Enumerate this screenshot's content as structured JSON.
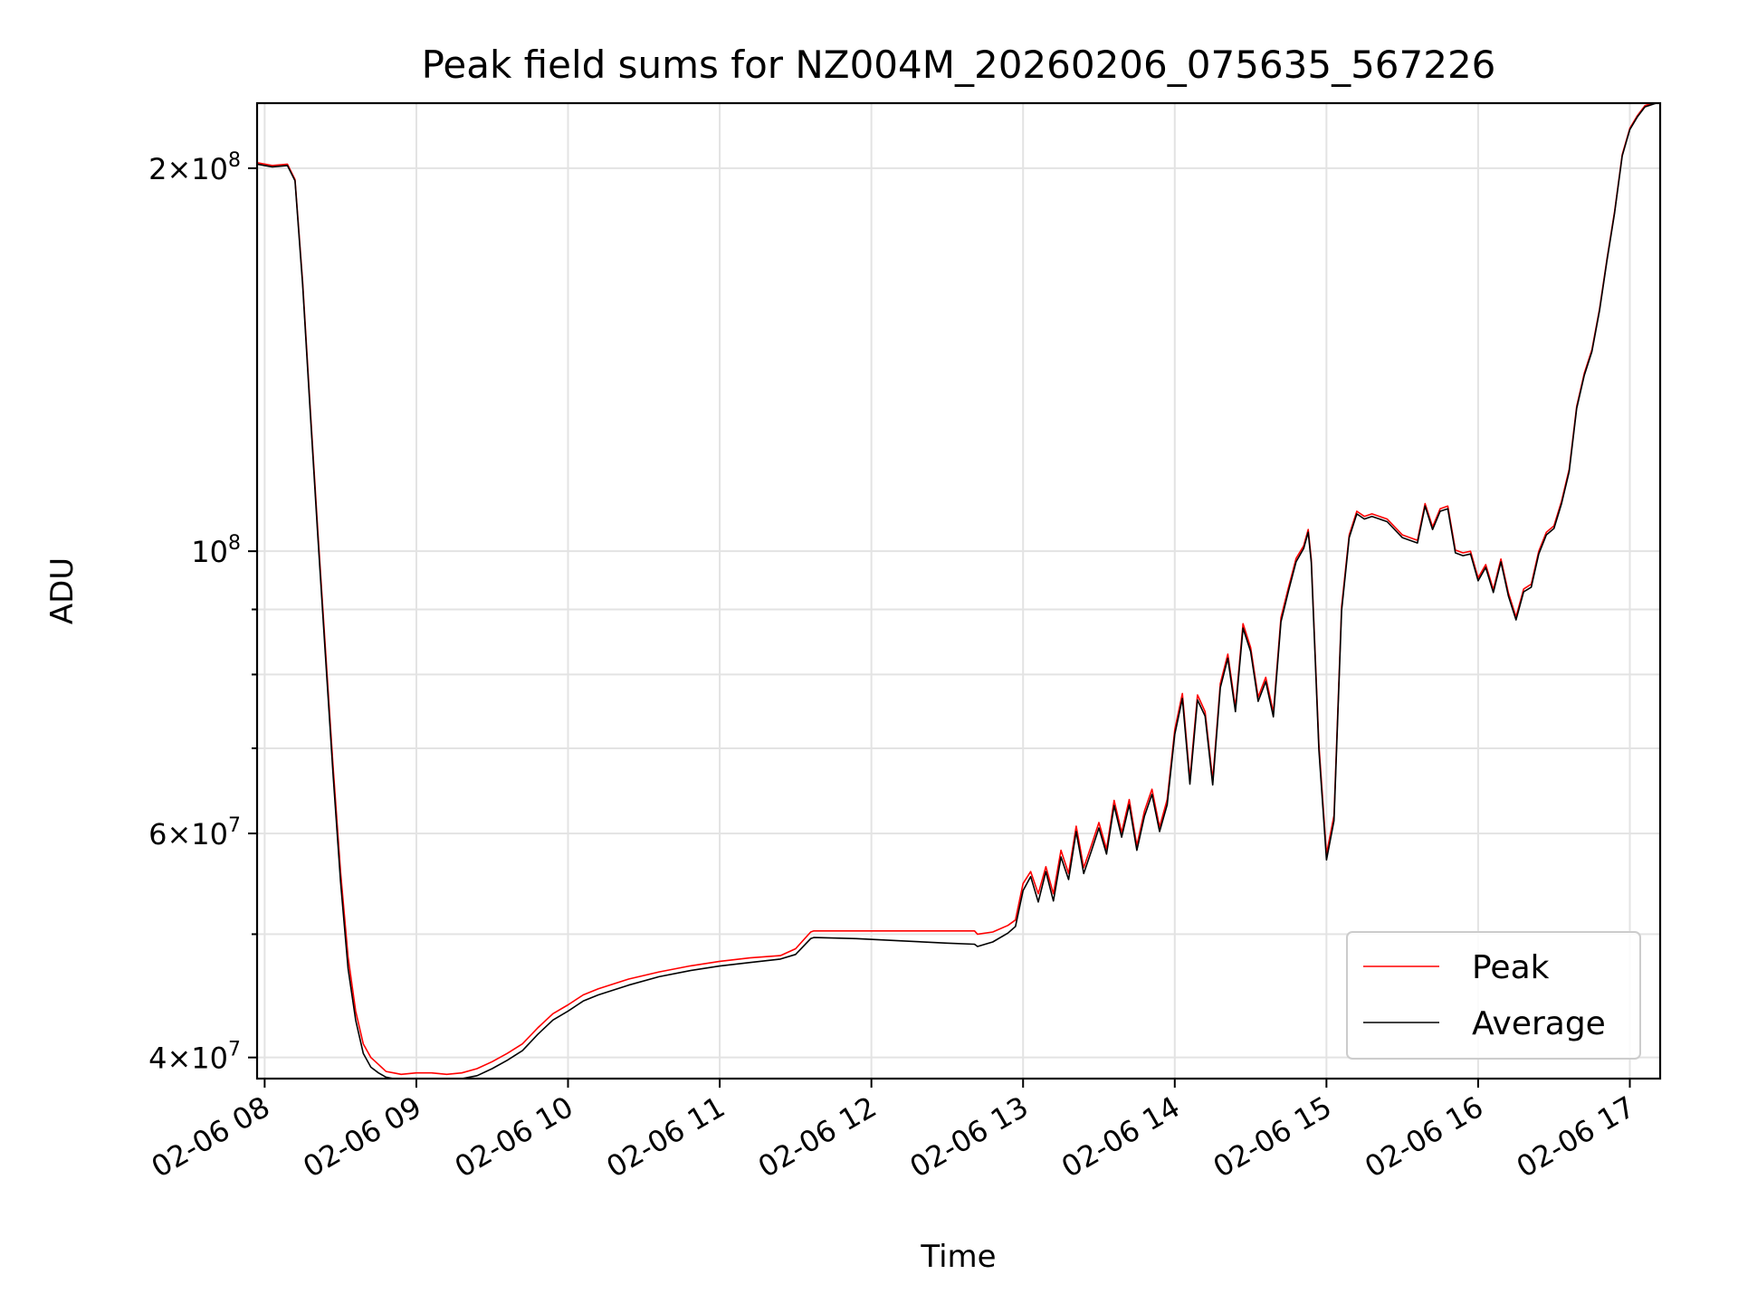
{
  "chart_data": {
    "type": "line",
    "title": "Peak field sums for NZ004M_20260206_075635_567226",
    "xlabel": "Time",
    "ylabel": "ADU",
    "yscale": "log",
    "grid": true,
    "legend_position": "lower-right",
    "x_unit": "hour of day (2026-02-06)",
    "xlim": [
      7.95,
      17.2
    ],
    "ylim": [
      38500000,
      225000000
    ],
    "x_ticks": [
      {
        "value": 8,
        "label": "02-06 08"
      },
      {
        "value": 9,
        "label": "02-06 09"
      },
      {
        "value": 10,
        "label": "02-06 10"
      },
      {
        "value": 11,
        "label": "02-06 11"
      },
      {
        "value": 12,
        "label": "02-06 12"
      },
      {
        "value": 13,
        "label": "02-06 13"
      },
      {
        "value": 14,
        "label": "02-06 14"
      },
      {
        "value": 15,
        "label": "02-06 15"
      },
      {
        "value": 16,
        "label": "02-06 16"
      },
      {
        "value": 17,
        "label": "02-06 17"
      }
    ],
    "y_ticks": [
      {
        "value": 200000000,
        "mantissa": "2",
        "exponent": "8"
      },
      {
        "value": 100000000,
        "mantissa": "",
        "exponent": "8"
      },
      {
        "value": 60000000,
        "mantissa": "6",
        "exponent": "7"
      },
      {
        "value": 40000000,
        "mantissa": "4",
        "exponent": "7"
      }
    ],
    "y_minor_ticks": [
      50000000,
      70000000,
      80000000,
      90000000
    ],
    "series": [
      {
        "name": "Peak",
        "color": "#ff0000",
        "x": [
          7.95,
          8.05,
          8.15,
          8.2,
          8.25,
          8.3,
          8.35,
          8.4,
          8.45,
          8.5,
          8.55,
          8.6,
          8.65,
          8.7,
          8.75,
          8.8,
          8.85,
          8.9,
          9.0,
          9.1,
          9.2,
          9.3,
          9.4,
          9.5,
          9.6,
          9.7,
          9.8,
          9.9,
          10.0,
          10.1,
          10.2,
          10.4,
          10.6,
          10.8,
          11.0,
          11.2,
          11.4,
          11.5,
          11.6,
          11.62,
          11.9,
          12.2,
          12.5,
          12.68,
          12.7,
          12.8,
          12.9,
          12.95,
          13.0,
          13.05,
          13.1,
          13.15,
          13.2,
          13.25,
          13.3,
          13.35,
          13.4,
          13.45,
          13.5,
          13.55,
          13.6,
          13.65,
          13.7,
          13.75,
          13.8,
          13.85,
          13.9,
          13.95,
          14.0,
          14.05,
          14.1,
          14.15,
          14.2,
          14.25,
          14.3,
          14.35,
          14.4,
          14.45,
          14.5,
          14.55,
          14.6,
          14.65,
          14.7,
          14.75,
          14.8,
          14.85,
          14.88,
          14.9,
          14.95,
          15.0,
          15.05,
          15.1,
          15.15,
          15.2,
          15.25,
          15.3,
          15.4,
          15.5,
          15.6,
          15.65,
          15.7,
          15.75,
          15.8,
          15.85,
          15.9,
          15.95,
          16.0,
          16.05,
          16.1,
          16.15,
          16.2,
          16.25,
          16.3,
          16.35,
          16.4,
          16.45,
          16.5,
          16.55,
          16.6,
          16.65,
          16.7,
          16.75,
          16.8,
          16.85,
          16.9,
          16.95,
          17.0,
          17.05,
          17.1,
          17.2
        ],
        "y": [
          202000000,
          201000000,
          201500000,
          196000000,
          163000000,
          130000000,
          104000000,
          84000000,
          68000000,
          56000000,
          48000000,
          43500000,
          41000000,
          40000000,
          39500000,
          39000000,
          38900000,
          38800000,
          38900000,
          38900000,
          38800000,
          38900000,
          39200000,
          39700000,
          40300000,
          41000000,
          42200000,
          43300000,
          44000000,
          44800000,
          45300000,
          46100000,
          46700000,
          47200000,
          47600000,
          47900000,
          48100000,
          48700000,
          50200000,
          50300000,
          50300000,
          50300000,
          50300000,
          50300000,
          50000000,
          50200000,
          50800000,
          51300000,
          54800000,
          56000000,
          53800000,
          56500000,
          53800000,
          58200000,
          55800000,
          60800000,
          56400000,
          58700000,
          61200000,
          58300000,
          63700000,
          60100000,
          63800000,
          58700000,
          62500000,
          65000000,
          60700000,
          63800000,
          72400000,
          77300000,
          66200000,
          77100000,
          74800000,
          66100000,
          78700000,
          83000000,
          75400000,
          87700000,
          84000000,
          76800000,
          79600000,
          74700000,
          88700000,
          93700000,
          98700000,
          101000000,
          104000000,
          98600000,
          70500000,
          57800000,
          62000000,
          90500000,
          103000000,
          107500000,
          106500000,
          107000000,
          106000000,
          103000000,
          102000000,
          109000000,
          104500000,
          108000000,
          108500000,
          100200000,
          99700000,
          100000000,
          95300000,
          97600000,
          93300000,
          98600000,
          92700000,
          88800000,
          93400000,
          94200000,
          100000000,
          103500000,
          104700000,
          109500000,
          116000000,
          130000000,
          138000000,
          144000000,
          155000000,
          170000000,
          185000000,
          205000000,
          215000000,
          220000000,
          224000000,
          226000000
        ]
      },
      {
        "name": "Average",
        "color": "#000000",
        "x": [
          7.95,
          8.05,
          8.15,
          8.2,
          8.25,
          8.3,
          8.35,
          8.4,
          8.45,
          8.5,
          8.55,
          8.6,
          8.65,
          8.7,
          8.75,
          8.8,
          8.85,
          8.9,
          9.0,
          9.1,
          9.2,
          9.3,
          9.4,
          9.5,
          9.6,
          9.7,
          9.8,
          9.9,
          10.0,
          10.1,
          10.2,
          10.4,
          10.6,
          10.8,
          11.0,
          11.2,
          11.4,
          11.5,
          11.6,
          11.62,
          11.9,
          12.2,
          12.5,
          12.68,
          12.7,
          12.8,
          12.9,
          12.95,
          13.0,
          13.05,
          13.1,
          13.15,
          13.2,
          13.25,
          13.3,
          13.35,
          13.4,
          13.45,
          13.5,
          13.55,
          13.6,
          13.65,
          13.7,
          13.75,
          13.8,
          13.85,
          13.9,
          13.95,
          14.0,
          14.05,
          14.1,
          14.15,
          14.2,
          14.25,
          14.3,
          14.35,
          14.4,
          14.45,
          14.5,
          14.55,
          14.6,
          14.65,
          14.7,
          14.75,
          14.8,
          14.85,
          14.88,
          14.9,
          14.95,
          15.0,
          15.05,
          15.1,
          15.15,
          15.2,
          15.25,
          15.3,
          15.4,
          15.5,
          15.6,
          15.65,
          15.7,
          15.75,
          15.8,
          15.85,
          15.9,
          15.95,
          16.0,
          16.05,
          16.1,
          16.15,
          16.2,
          16.25,
          16.3,
          16.35,
          16.4,
          16.45,
          16.5,
          16.55,
          16.6,
          16.65,
          16.7,
          16.75,
          16.8,
          16.85,
          16.9,
          16.95,
          17.0,
          17.05,
          17.1,
          17.2
        ],
        "y": [
          201500000,
          200500000,
          201000000,
          195500000,
          162000000,
          129000000,
          103000000,
          83000000,
          67000000,
          55000000,
          47000000,
          42800000,
          40300000,
          39300000,
          38900000,
          38600000,
          38500000,
          38500000,
          38500000,
          38500000,
          38400000,
          38500000,
          38700000,
          39200000,
          39800000,
          40500000,
          41700000,
          42800000,
          43500000,
          44300000,
          44800000,
          45600000,
          46300000,
          46800000,
          47200000,
          47500000,
          47800000,
          48200000,
          49600000,
          49700000,
          49600000,
          49400000,
          49200000,
          49100000,
          48900000,
          49300000,
          50100000,
          50700000,
          54100000,
          55500000,
          53000000,
          56000000,
          53100000,
          57500000,
          55200000,
          60200000,
          55800000,
          58100000,
          60600000,
          57800000,
          63100000,
          59600000,
          63200000,
          58200000,
          61900000,
          64400000,
          60200000,
          63200000,
          71800000,
          76600000,
          65600000,
          76400000,
          74200000,
          65500000,
          78100000,
          82400000,
          74800000,
          87000000,
          83400000,
          76200000,
          79000000,
          74100000,
          88000000,
          93100000,
          98100000,
          100500000,
          103500000,
          98000000,
          69800000,
          57200000,
          61400000,
          89800000,
          102500000,
          107000000,
          106000000,
          106500000,
          105500000,
          102500000,
          101500000,
          108500000,
          104000000,
          107500000,
          108000000,
          99700000,
          99200000,
          99500000,
          94800000,
          97100000,
          92800000,
          98100000,
          92200000,
          88300000,
          92900000,
          93700000,
          99500000,
          103000000,
          104200000,
          109000000,
          115500000,
          129500000,
          137500000,
          143500000,
          154500000,
          169500000,
          184500000,
          204500000,
          214500000,
          219500000,
          223500000,
          225500000
        ]
      }
    ]
  }
}
